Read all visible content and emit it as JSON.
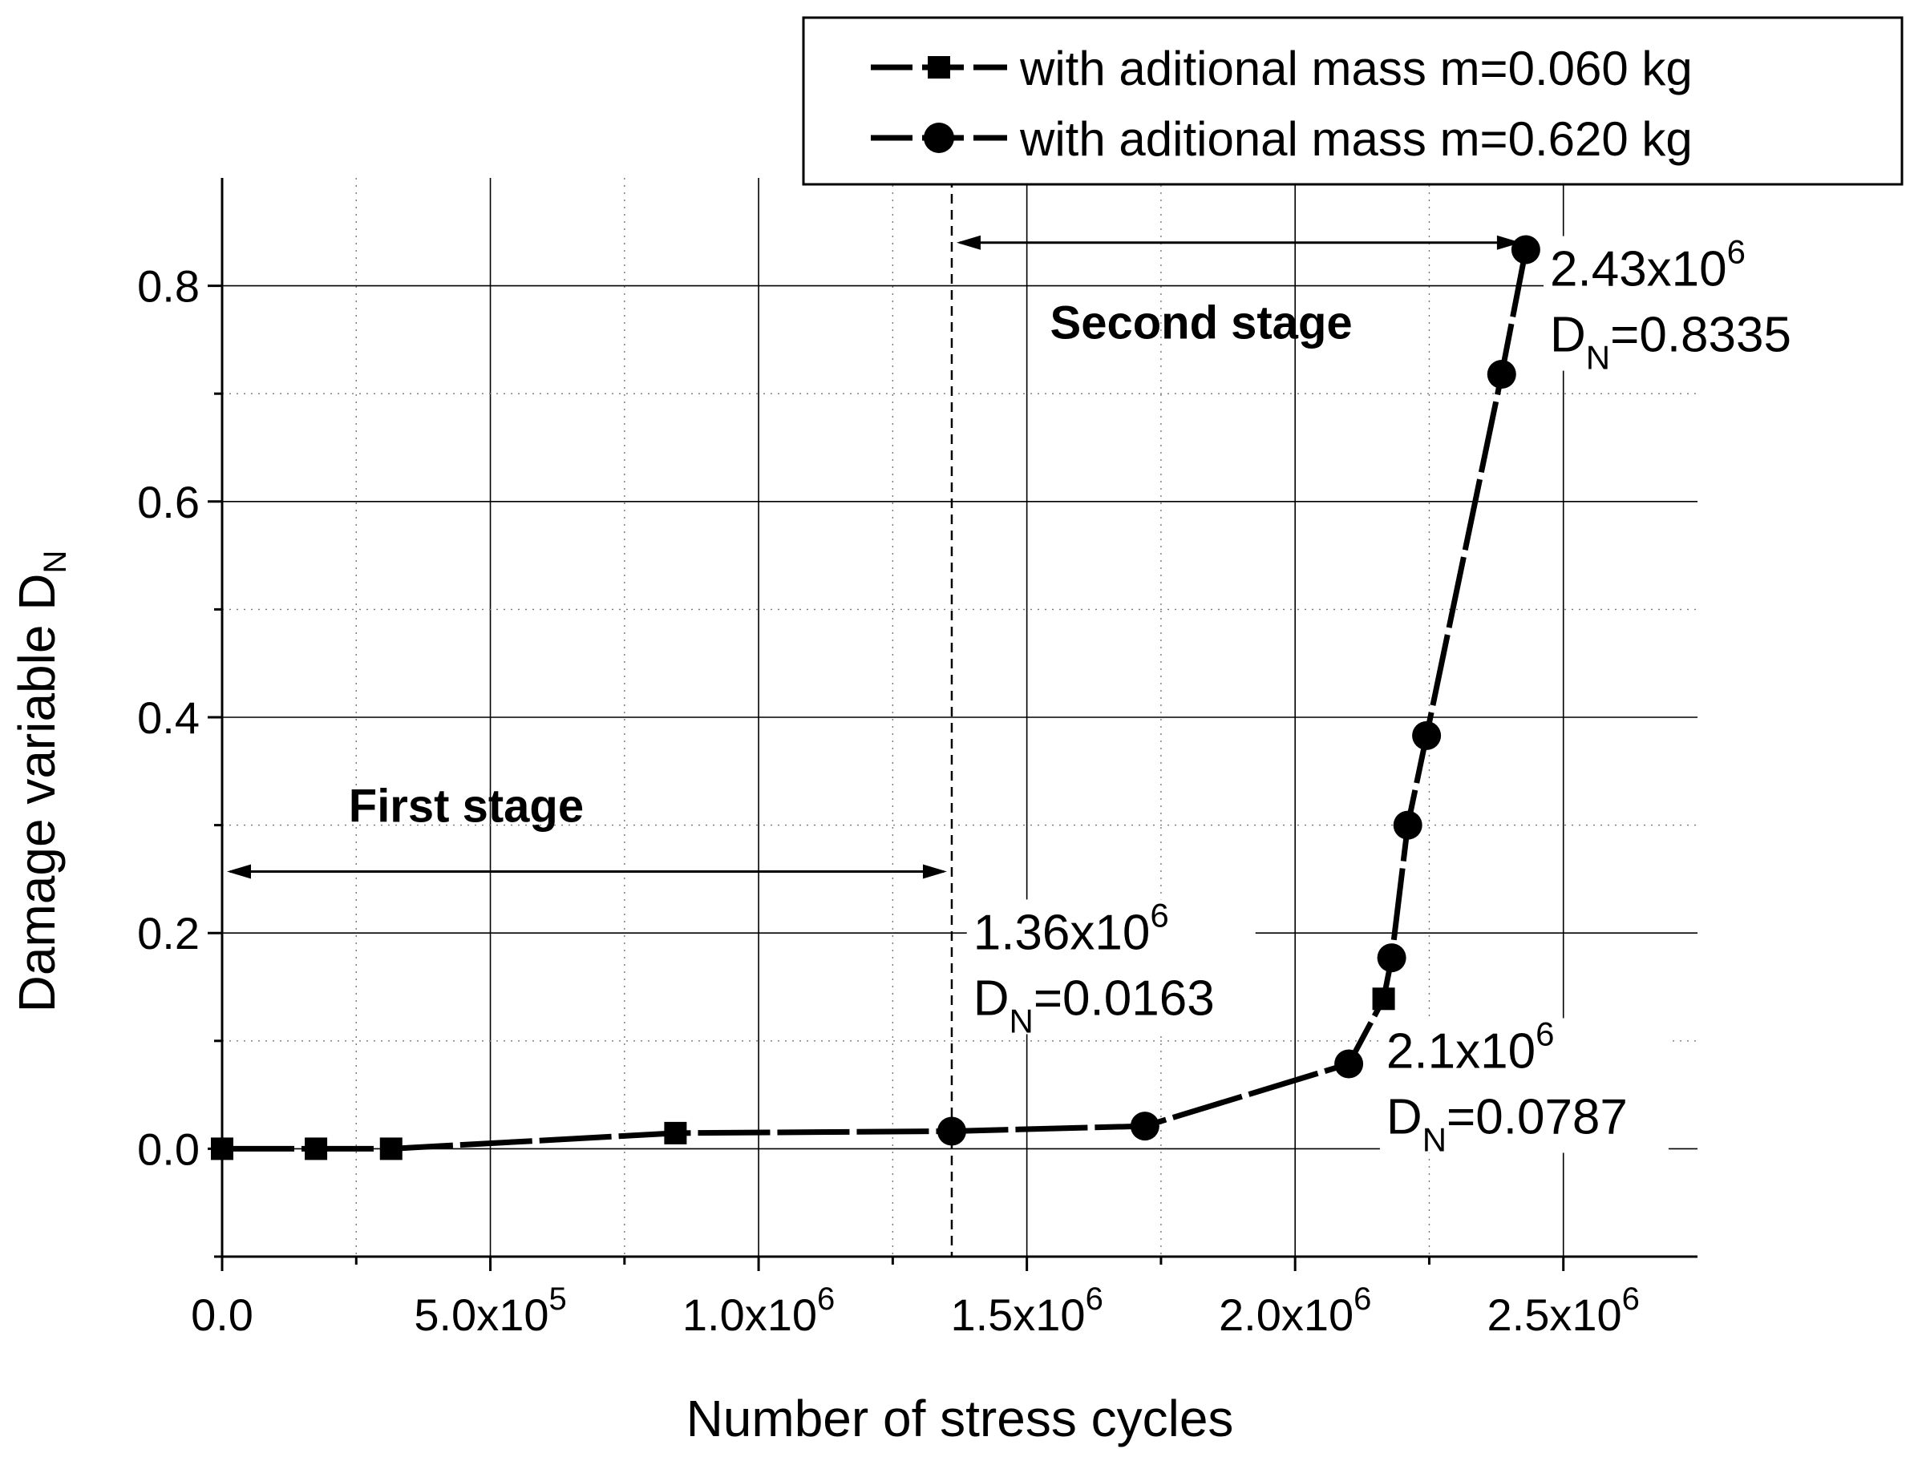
{
  "colors": {
    "ink": "#000000",
    "background": "#ffffff"
  },
  "chart_data": {
    "type": "line",
    "title": "",
    "xlabel": "Number of stress cycles",
    "ylabel": {
      "base": "Damage variable D",
      "sub": "N"
    },
    "xlim": [
      0,
      2750000
    ],
    "ylim": [
      -0.1,
      0.9
    ],
    "grid": true,
    "legend_position": "top-right",
    "x_ticks": [
      {
        "value": 0,
        "base": "0.0",
        "exp": ""
      },
      {
        "value": 500000,
        "base": "5.0x10",
        "exp": "5"
      },
      {
        "value": 1000000,
        "base": "1.0x10",
        "exp": "6"
      },
      {
        "value": 1500000,
        "base": "1.5x10",
        "exp": "6"
      },
      {
        "value": 2000000,
        "base": "2.0x10",
        "exp": "6"
      },
      {
        "value": 2500000,
        "base": "2.5x10",
        "exp": "6"
      }
    ],
    "y_ticks": [
      {
        "value": 0.0,
        "label": "0.0"
      },
      {
        "value": 0.2,
        "label": "0.2"
      },
      {
        "value": 0.4,
        "label": "0.4"
      },
      {
        "value": 0.6,
        "label": "0.6"
      },
      {
        "value": 0.8,
        "label": "0.8"
      }
    ],
    "series": [
      {
        "name": "with aditional mass m=0.060 kg",
        "marker": "square",
        "x": [
          0,
          175000,
          315000,
          845000,
          2165000
        ],
        "y": [
          0.0,
          0.0,
          0.0,
          0.0145,
          0.139
        ]
      },
      {
        "name": "with aditional mass m=0.620 kg",
        "marker": "circle",
        "x": [
          1360000,
          1720000,
          2100000,
          2180000,
          2210000,
          2245000,
          2385000,
          2430000
        ],
        "y": [
          0.0163,
          0.021,
          0.0787,
          0.177,
          0.3,
          0.383,
          0.718,
          0.8335
        ]
      }
    ],
    "connector": {
      "x": [
        0,
        175000,
        315000,
        845000,
        1360000,
        1720000,
        2100000,
        2165000,
        2180000,
        2210000,
        2245000,
        2385000,
        2430000
      ],
      "y": [
        0.0,
        0.0,
        0.0,
        0.0145,
        0.0163,
        0.021,
        0.0787,
        0.139,
        0.177,
        0.3,
        0.383,
        0.718,
        0.8335
      ]
    },
    "stage_boundary_x": 1360000,
    "stages": [
      {
        "label": "First stage",
        "label_x": 455000,
        "label_y": 0.318,
        "arrow_from_x": 0,
        "arrow_to_x": 1360000,
        "arrow_y": 0.257
      },
      {
        "label": "Second stage",
        "label_x": 1825000,
        "label_y": 0.766,
        "arrow_from_x": 1360000,
        "arrow_to_x": 2430000,
        "arrow_y": 0.84
      }
    ],
    "annotations": [
      {
        "x_base": "1.36x10",
        "x_exp": "6",
        "d_base": "D",
        "d_sub": "N",
        "d_value": "=0.0163",
        "anchor_x": 1400000,
        "anchor_y": 0.185
      },
      {
        "x_base": "2.1x10",
        "x_exp": "6",
        "d_base": "D",
        "d_sub": "N",
        "d_value": "=0.0787",
        "anchor_x": 2170000,
        "anchor_y": 0.075
      },
      {
        "x_base": "2.43x10",
        "x_exp": "6",
        "d_base": "D",
        "d_sub": "N",
        "d_value": "=0.8335",
        "anchor_x": 2475000,
        "anchor_y": 0.8
      }
    ]
  }
}
